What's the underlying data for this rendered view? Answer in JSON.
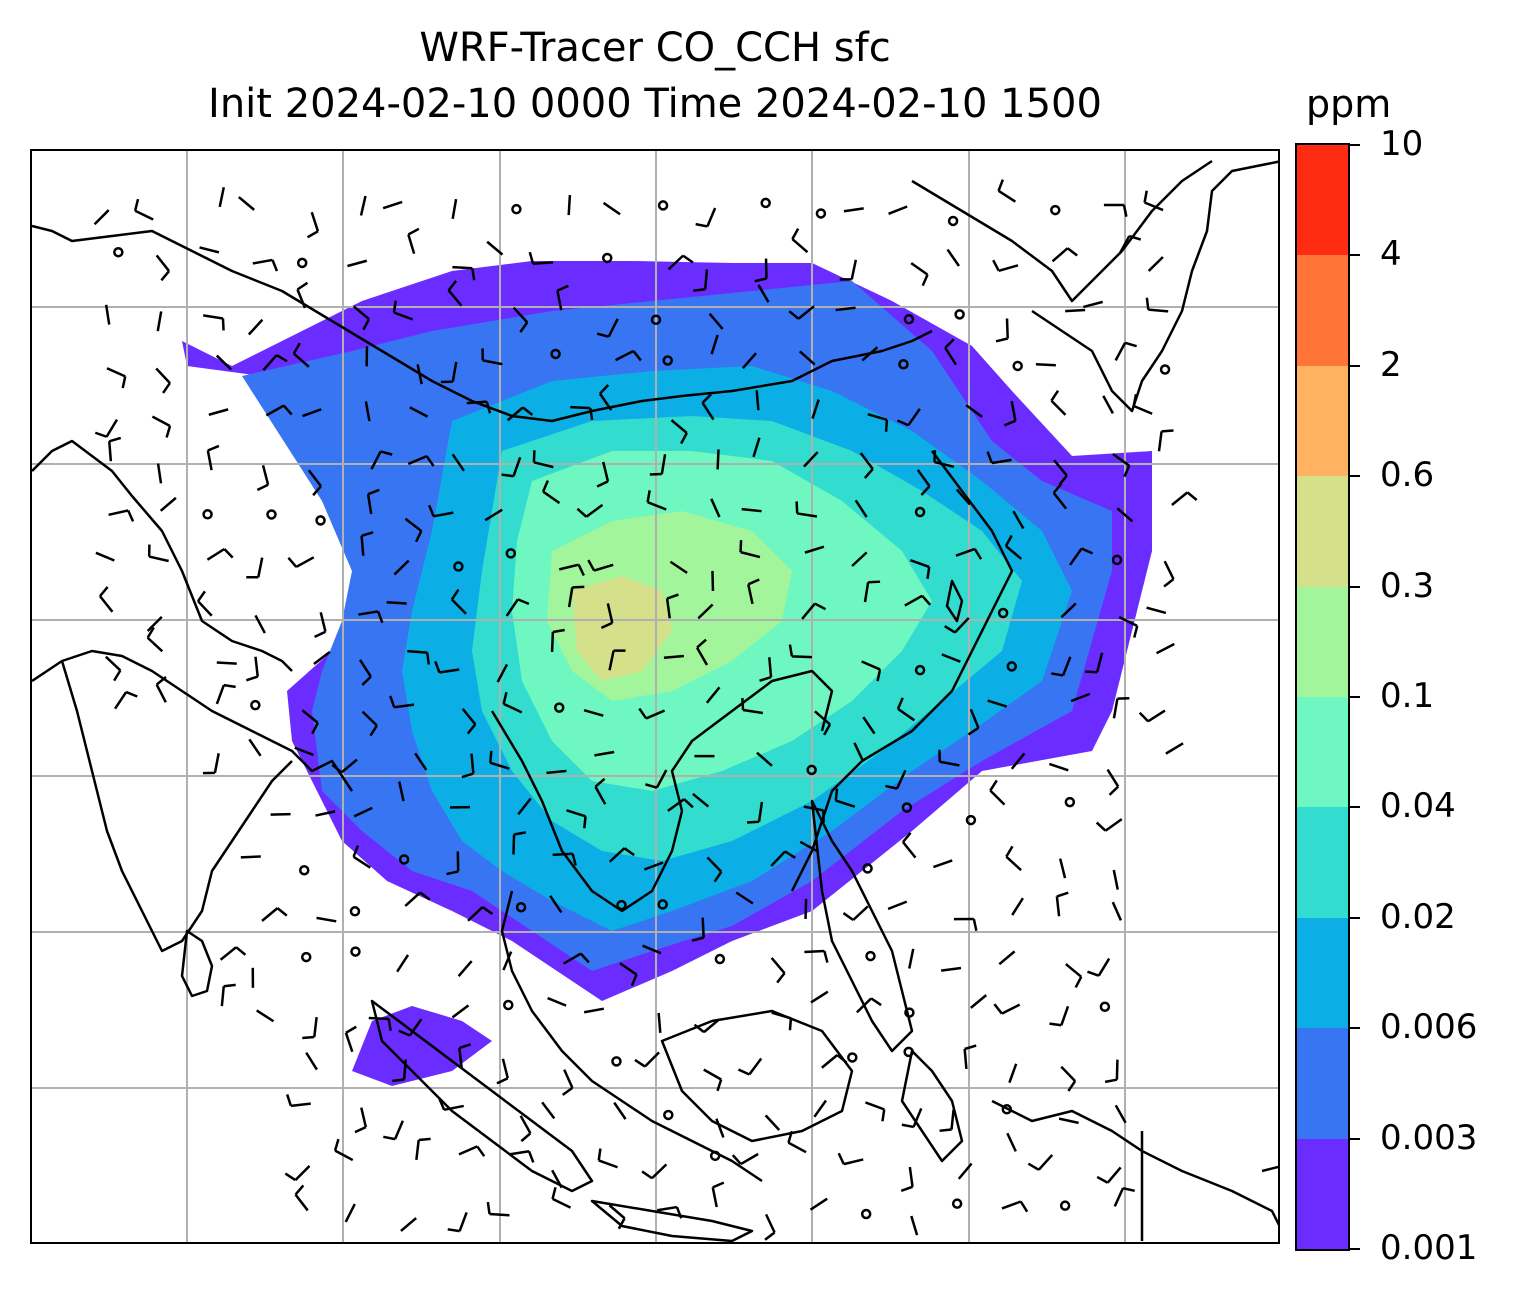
{
  "title": {
    "line1": "WRF-Tracer CO_CCH sfc",
    "line2": "Init 2024-02-10 0000 Time 2024-02-10 1500"
  },
  "colorbar": {
    "unit": "ppm",
    "levels": [
      "0.001",
      "0.003",
      "0.006",
      "0.02",
      "0.04",
      "0.1",
      "0.3",
      "0.6",
      "2",
      "4",
      "10"
    ],
    "colors": [
      "#6a2cff",
      "#3875f2",
      "#0bafe6",
      "#32dccf",
      "#6ef7c1",
      "#a2f59b",
      "#d4e08a",
      "#ffb25f",
      "#ff7438",
      "#ff2b12"
    ]
  },
  "map": {
    "gridlines": "on",
    "gridline_color": "#b0b0b0",
    "coastline_color": "#000000",
    "overlay": "wind barbs",
    "legend": "colorbar right"
  }
}
